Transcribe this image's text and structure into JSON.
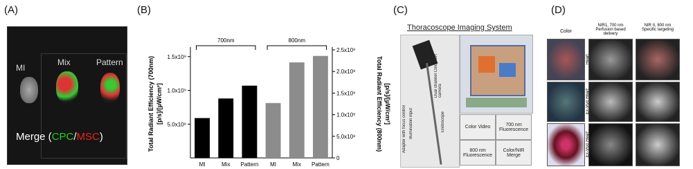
{
  "panels": {
    "a": {
      "label": "(A)",
      "samples": [
        "MI",
        "Mix",
        "Pattern"
      ],
      "merge": {
        "prefix": "Merge (",
        "cpc": "CPC",
        "slash": "/",
        "msc": "MSC",
        "suffix": ")"
      }
    },
    "b": {
      "label": "(B)"
    },
    "c": {
      "label": "(C)",
      "title": "Thoracoscope Imaging System",
      "parts": [
        "Adapter with focus control",
        "Illumination input",
        "Dual channel Color-NIR camera",
        "Endoscope"
      ],
      "views": [
        "Color Video",
        "700 nm Fluorescence",
        "800 nm Fluorescence",
        "Color/NIR Merge"
      ]
    },
    "d": {
      "label": "(D)",
      "columns": [
        {
          "title": "Color"
        },
        {
          "title": "NIR1, 700 nm",
          "note": "Perfusion based delivery"
        },
        {
          "title": "NIR II, 800 nm",
          "note": "Specific targeting"
        }
      ],
      "rows": [
        "Heart",
        "Ex-Vivo Heart",
        "Ex-Vivo Heart"
      ]
    }
  },
  "chart_data": {
    "type": "bar",
    "ylabel": "Total Radiant Efficiency (700nm)",
    "ylabel_units": "[p/s]/[µW/cm²]",
    "y2label": "Total Radiant Efficiency (800nm)",
    "y2label_units": "[p/s]/[µW/cm²]",
    "categories": [
      "MI",
      "Mix",
      "Pattern",
      "MI",
      "Mix",
      "Pattern"
    ],
    "series": [
      {
        "name": "700nm",
        "color": "#000000",
        "values": [
          590000000,
          880000000,
          1070000000,
          null,
          null,
          null
        ]
      },
      {
        "name": "800nm",
        "color": "#8c8c8c",
        "axis": "y2",
        "values": [
          null,
          null,
          null,
          1270000000,
          2210000000,
          2360000000
        ]
      }
    ],
    "ylim": [
      0,
      1600000000
    ],
    "yticks": [
      {
        "value": 500000000,
        "label": "5.0x10⁸"
      },
      {
        "value": 1000000000,
        "label": "1.0x10⁹"
      },
      {
        "value": 1500000000,
        "label": "1.5x10⁹"
      }
    ],
    "y2lim": [
      0,
      2500000000
    ],
    "y2ticks": [
      0,
      {
        "value": 500000000,
        "label": "5.0x10⁸"
      },
      {
        "value": 1000000000,
        "label": "1.0x10⁹"
      },
      {
        "value": 1500000000,
        "label": "1.5x10⁹"
      },
      {
        "value": 2000000000,
        "label": "2.0x10⁹"
      },
      {
        "value": 2500000000,
        "label": "2.5x10⁹"
      }
    ],
    "grid": false
  }
}
